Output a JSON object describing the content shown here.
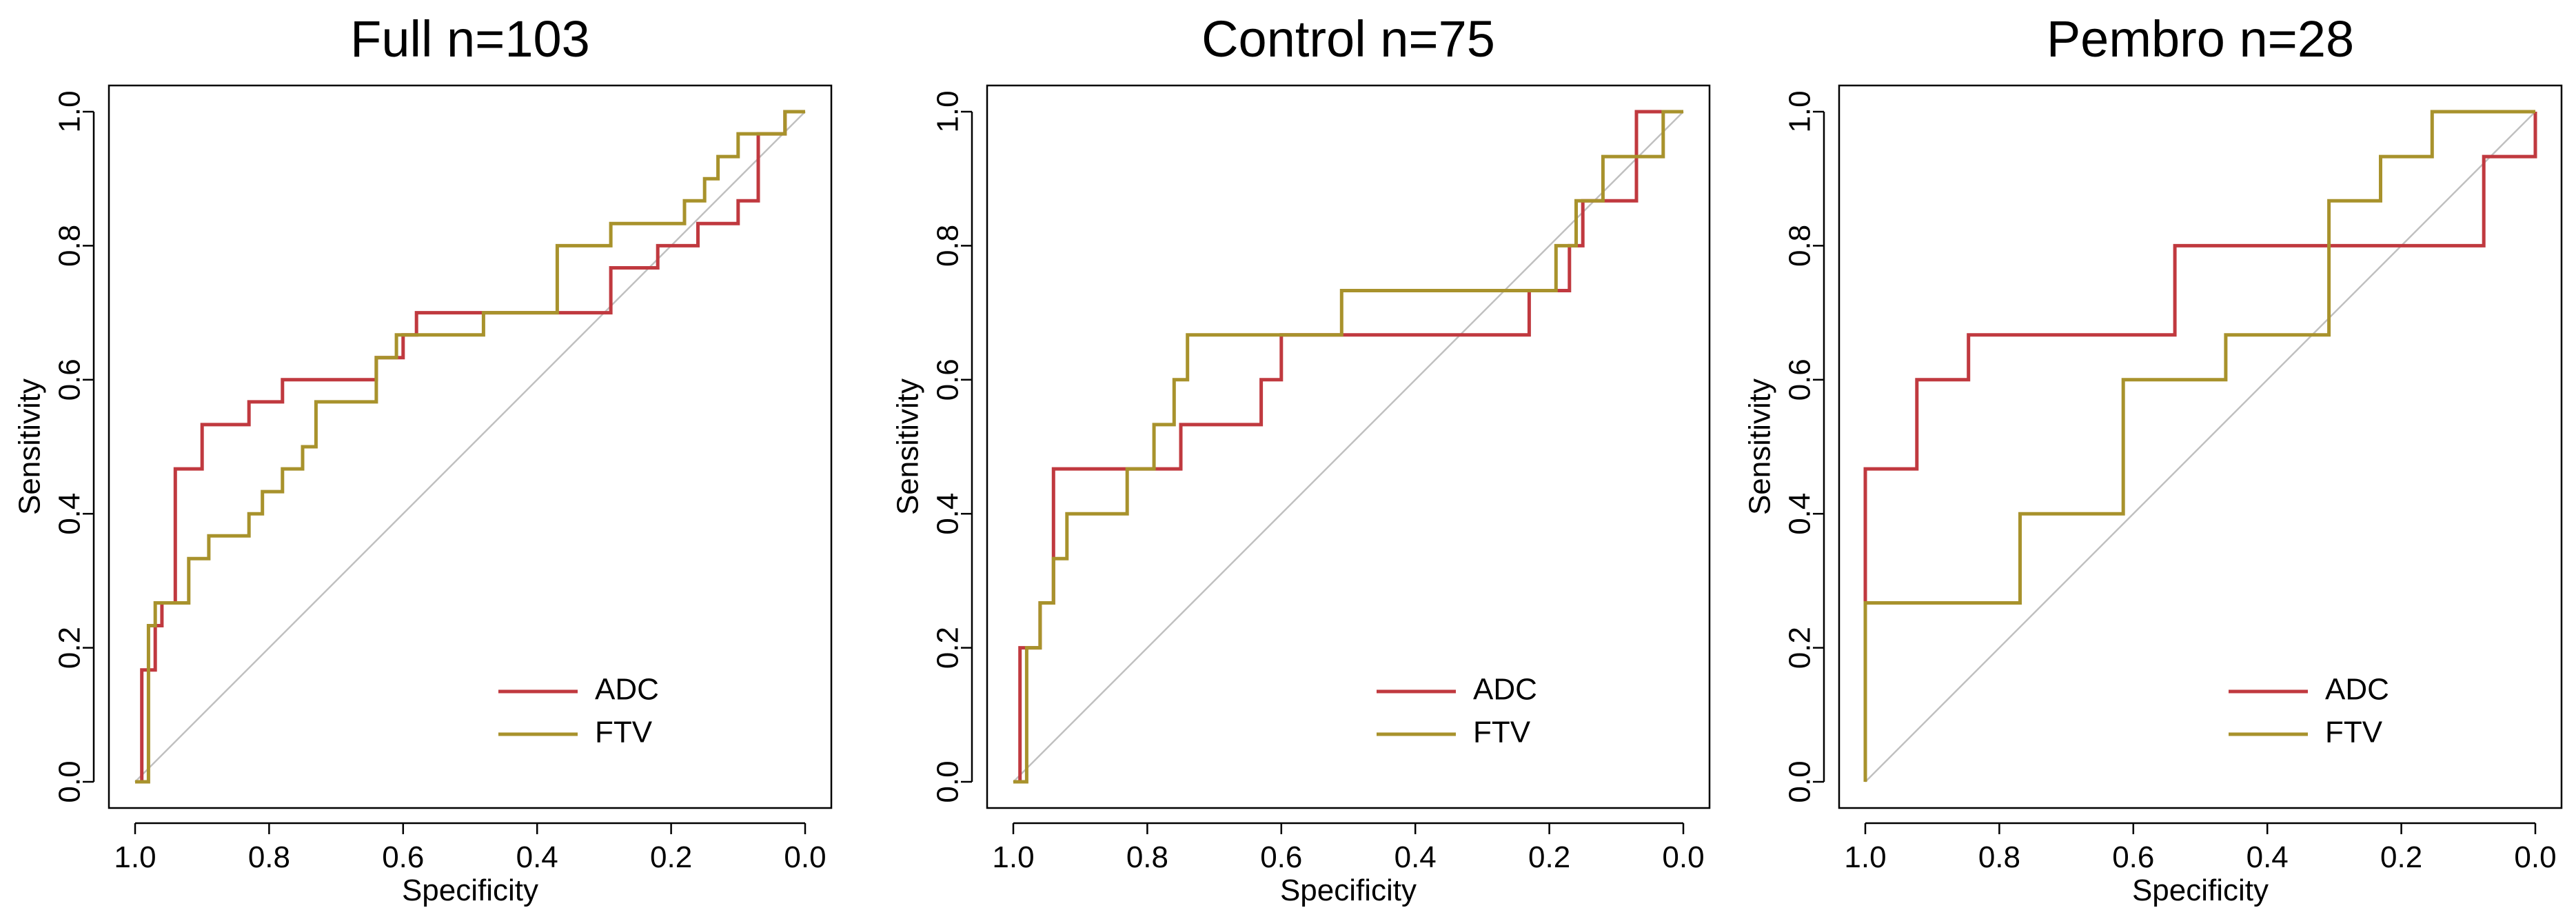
{
  "colors": {
    "ADC": "#c0393f",
    "FTV": "#a8922c",
    "diagonal": "#c0c0c0"
  },
  "chart_data": [
    {
      "type": "line",
      "title": "Full n=103",
      "xlabel": "Specificity",
      "ylabel": "Sensitivity",
      "xlim": [
        1.0,
        0.0
      ],
      "ylim": [
        0.0,
        1.0
      ],
      "x_reversed": true,
      "xticks": [
        "1.0",
        "0.8",
        "0.6",
        "0.4",
        "0.2",
        "0.0"
      ],
      "yticks": [
        "0.0",
        "0.2",
        "0.4",
        "0.6",
        "0.8",
        "1.0"
      ],
      "reference_line": "diagonal",
      "grid": false,
      "legend_position": "bottom-right",
      "legend": [
        "ADC",
        "FTV"
      ],
      "series": [
        {
          "name": "ADC",
          "color_key": "ADC",
          "x": [
            1.0,
            0.99,
            0.99,
            0.97,
            0.97,
            0.96,
            0.96,
            0.94,
            0.94,
            0.9,
            0.9,
            0.83,
            0.83,
            0.78,
            0.78,
            0.64,
            0.64,
            0.6,
            0.6,
            0.58,
            0.58,
            0.29,
            0.29,
            0.22,
            0.22,
            0.16,
            0.16,
            0.1,
            0.1,
            0.07,
            0.07,
            0.03,
            0.03,
            0.0
          ],
          "y": [
            0.0,
            0.0,
            0.167,
            0.167,
            0.233,
            0.233,
            0.267,
            0.267,
            0.467,
            0.467,
            0.533,
            0.533,
            0.567,
            0.567,
            0.6,
            0.6,
            0.633,
            0.633,
            0.667,
            0.667,
            0.7,
            0.7,
            0.767,
            0.767,
            0.8,
            0.8,
            0.833,
            0.833,
            0.867,
            0.867,
            0.967,
            0.967,
            1.0,
            1.0
          ]
        },
        {
          "name": "FTV",
          "color_key": "FTV",
          "x": [
            1.0,
            0.98,
            0.98,
            0.97,
            0.97,
            0.92,
            0.92,
            0.89,
            0.89,
            0.83,
            0.83,
            0.81,
            0.81,
            0.78,
            0.78,
            0.75,
            0.75,
            0.73,
            0.73,
            0.64,
            0.64,
            0.61,
            0.61,
            0.48,
            0.48,
            0.37,
            0.37,
            0.29,
            0.29,
            0.18,
            0.18,
            0.15,
            0.15,
            0.13,
            0.13,
            0.1,
            0.1,
            0.03,
            0.03,
            0.0
          ],
          "y": [
            0.0,
            0.0,
            0.233,
            0.233,
            0.267,
            0.267,
            0.333,
            0.333,
            0.367,
            0.367,
            0.4,
            0.4,
            0.433,
            0.433,
            0.467,
            0.467,
            0.5,
            0.5,
            0.567,
            0.567,
            0.633,
            0.633,
            0.667,
            0.667,
            0.7,
            0.7,
            0.8,
            0.8,
            0.833,
            0.833,
            0.867,
            0.867,
            0.9,
            0.9,
            0.933,
            0.933,
            0.967,
            0.967,
            1.0,
            1.0
          ]
        }
      ]
    },
    {
      "type": "line",
      "title": "Control n=75",
      "xlabel": "Specificity",
      "ylabel": "Sensitivity",
      "xlim": [
        1.0,
        0.0
      ],
      "ylim": [
        0.0,
        1.0
      ],
      "x_reversed": true,
      "xticks": [
        "1.0",
        "0.8",
        "0.6",
        "0.4",
        "0.2",
        "0.0"
      ],
      "yticks": [
        "0.0",
        "0.2",
        "0.4",
        "0.6",
        "0.8",
        "1.0"
      ],
      "reference_line": "diagonal",
      "grid": false,
      "legend_position": "bottom-right",
      "legend": [
        "ADC",
        "FTV"
      ],
      "series": [
        {
          "name": "ADC",
          "color_key": "ADC",
          "x": [
            1.0,
            0.99,
            0.99,
            0.96,
            0.96,
            0.94,
            0.94,
            0.9,
            0.9,
            0.75,
            0.75,
            0.63,
            0.63,
            0.6,
            0.6,
            0.23,
            0.23,
            0.17,
            0.17,
            0.15,
            0.15,
            0.13,
            0.13,
            0.07,
            0.07,
            0.0
          ],
          "y": [
            0.0,
            0.0,
            0.2,
            0.2,
            0.267,
            0.267,
            0.467,
            0.467,
            0.467,
            0.467,
            0.533,
            0.533,
            0.6,
            0.6,
            0.667,
            0.667,
            0.733,
            0.733,
            0.8,
            0.8,
            0.867,
            0.867,
            0.867,
            0.867,
            1.0,
            1.0
          ]
        },
        {
          "name": "FTV",
          "color_key": "FTV",
          "x": [
            1.0,
            0.98,
            0.98,
            0.96,
            0.96,
            0.94,
            0.94,
            0.92,
            0.92,
            0.83,
            0.83,
            0.79,
            0.79,
            0.76,
            0.76,
            0.74,
            0.74,
            0.51,
            0.51,
            0.19,
            0.19,
            0.16,
            0.16,
            0.12,
            0.12,
            0.03,
            0.03,
            0.0
          ],
          "y": [
            0.0,
            0.0,
            0.2,
            0.2,
            0.267,
            0.267,
            0.333,
            0.333,
            0.4,
            0.4,
            0.467,
            0.467,
            0.533,
            0.533,
            0.6,
            0.6,
            0.667,
            0.667,
            0.733,
            0.733,
            0.8,
            0.8,
            0.867,
            0.867,
            0.933,
            0.933,
            1.0,
            1.0
          ]
        }
      ]
    },
    {
      "type": "line",
      "title": "Pembro n=28",
      "xlabel": "Specificity",
      "ylabel": "Sensitivity",
      "xlim": [
        1.0,
        0.0
      ],
      "ylim": [
        0.0,
        1.0
      ],
      "x_reversed": true,
      "xticks": [
        "1.0",
        "0.8",
        "0.6",
        "0.4",
        "0.2",
        "0.0"
      ],
      "yticks": [
        "0.0",
        "0.2",
        "0.4",
        "0.6",
        "0.8",
        "1.0"
      ],
      "reference_line": "diagonal",
      "grid": false,
      "legend_position": "bottom-right",
      "legend": [
        "ADC",
        "FTV"
      ],
      "series": [
        {
          "name": "ADC",
          "color_key": "ADC",
          "x": [
            1.0,
            1.0,
            0.923,
            0.923,
            0.846,
            0.846,
            0.538,
            0.538,
            0.077,
            0.077,
            0.0,
            0.0
          ],
          "y": [
            0.0,
            0.467,
            0.467,
            0.6,
            0.6,
            0.667,
            0.667,
            0.8,
            0.8,
            0.933,
            0.933,
            1.0
          ]
        },
        {
          "name": "FTV",
          "color_key": "FTV",
          "x": [
            1.0,
            1.0,
            0.769,
            0.769,
            0.615,
            0.615,
            0.462,
            0.462,
            0.308,
            0.308,
            0.231,
            0.231,
            0.154,
            0.154,
            0.0
          ],
          "y": [
            0.0,
            0.267,
            0.267,
            0.4,
            0.4,
            0.6,
            0.6,
            0.667,
            0.667,
            0.867,
            0.867,
            0.933,
            0.933,
            1.0,
            1.0
          ]
        }
      ]
    }
  ]
}
